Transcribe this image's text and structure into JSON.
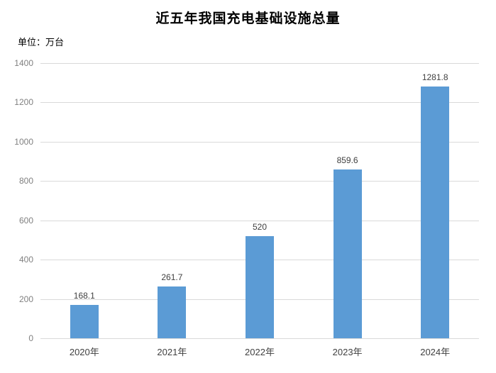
{
  "title": "近五年我国充电基础设施总量",
  "unit_label": "单位：万台",
  "chart_data": {
    "type": "bar",
    "title": "近五年我国充电基础设施总量",
    "unit_label": "单位：万台",
    "categories": [
      "2020年",
      "2021年",
      "2022年",
      "2023年",
      "2024年"
    ],
    "values": [
      168.1,
      261.7,
      520,
      859.6,
      1281.8
    ],
    "data_labels": [
      "168.1",
      "261.7",
      "520",
      "859.6",
      "1281.8"
    ],
    "xlabel": "",
    "ylabel": "单位：万台",
    "ylim": [
      0,
      1400
    ],
    "ytick_step": 200,
    "ytick_labels": [
      "0",
      "200",
      "400",
      "600",
      "800",
      "1000",
      "1200",
      "1400"
    ],
    "grid": true,
    "legend": false,
    "colors": {
      "bar": "#5B9BD5",
      "gridline": "#D9D9D9",
      "y_tick_label": "#808080",
      "data_label": "#404040",
      "category_label": "#404040",
      "title": "#000000",
      "background": "#FFFFFF"
    }
  }
}
